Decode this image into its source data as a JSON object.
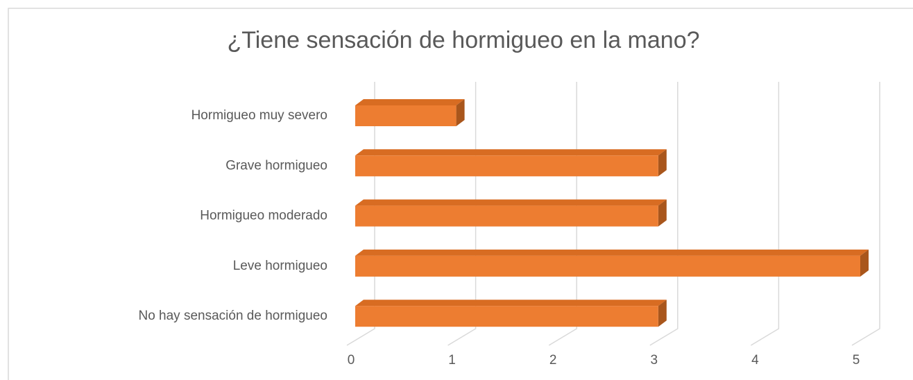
{
  "chart_data": {
    "type": "bar3d_horizontal",
    "title": "¿Tiene sensación de hormigueo en la mano?",
    "categories": [
      "Hormigueo muy severo",
      "Grave hormigueo",
      "Hormigueo moderado",
      "Leve hormigueo",
      "No hay sensación de hormigueo"
    ],
    "values": [
      1,
      3,
      3,
      5,
      3
    ],
    "color": "#ED7D31",
    "xlim": [
      0,
      5
    ],
    "xticks": [
      0,
      1,
      2,
      3,
      4,
      5
    ],
    "grid": true
  }
}
